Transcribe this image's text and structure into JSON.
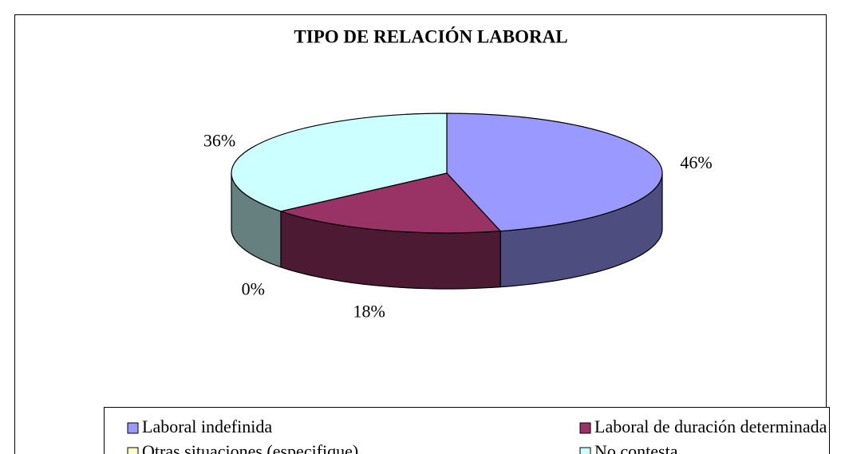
{
  "chart_data": {
    "type": "pie3d",
    "title": "TIPO DE RELACIÓN LABORAL",
    "categories": [
      "Laboral indefinida",
      "Laboral de duración determinada",
      "Otras situaciones (especifique)",
      "No contesta"
    ],
    "values": [
      46,
      18,
      0,
      36
    ],
    "value_labels": [
      "46%",
      "18%",
      "0%",
      "36%"
    ],
    "colors": [
      "#9999ff",
      "#993366",
      "#ffffcc",
      "#ccffff"
    ],
    "legend": "bottom"
  }
}
